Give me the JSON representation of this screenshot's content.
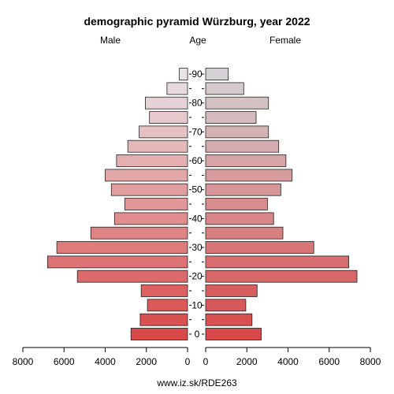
{
  "chart_data": {
    "type": "bar",
    "title": "demographic pyramid Würzburg, year 2022",
    "male_label": "Male",
    "age_label": "Age",
    "female_label": "Female",
    "source": "www.iz.sk/RDE263",
    "age_groups": [
      "0",
      "5",
      "10",
      "15",
      "20",
      "25",
      "30",
      "35",
      "40",
      "45",
      "50",
      "55",
      "60",
      "65",
      "70",
      "75",
      "80",
      "85",
      "90"
    ],
    "age_tick_labels": [
      "0",
      "10",
      "20",
      "30",
      "40",
      "50",
      "60",
      "70",
      "80",
      "90"
    ],
    "x_tick_labels": [
      "8000",
      "6000",
      "4000",
      "2000",
      "0"
    ],
    "xlim": [
      0,
      8000
    ],
    "series": [
      {
        "name": "Male",
        "values": [
          2750,
          2300,
          1950,
          2250,
          5350,
          6800,
          6350,
          4700,
          3550,
          3050,
          3700,
          4000,
          3450,
          2900,
          2350,
          1850,
          2050,
          1000,
          400
        ]
      },
      {
        "name": "Female",
        "values": [
          2700,
          2250,
          1950,
          2500,
          7350,
          6950,
          5250,
          3750,
          3300,
          3000,
          3650,
          4200,
          3900,
          3550,
          3050,
          2450,
          3050,
          1850,
          1100
        ]
      }
    ],
    "colors": {
      "young": "#d94848",
      "old": "#e8e3e5",
      "stroke": "#222222"
    }
  }
}
